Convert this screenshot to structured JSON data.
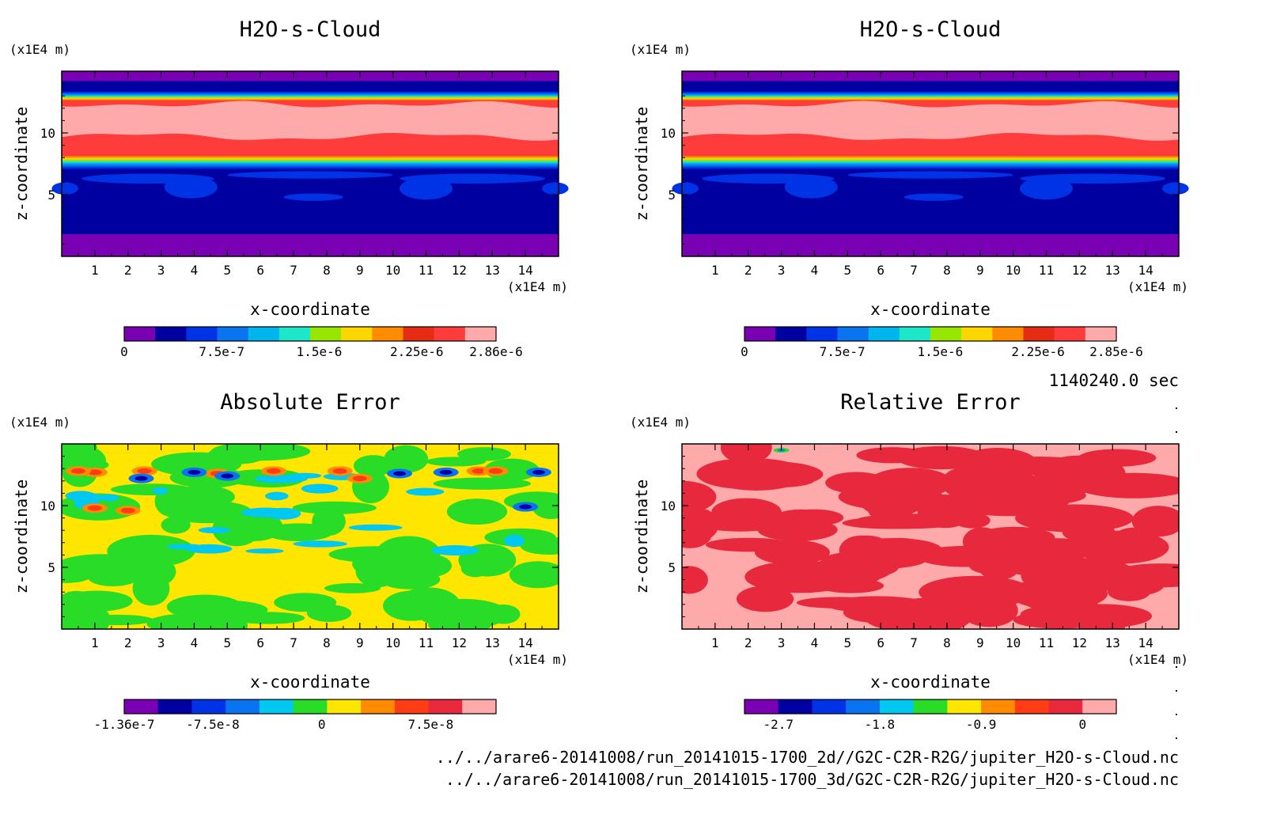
{
  "chart_data": [
    {
      "type": "heatmap",
      "title": "H2O-s-Cloud",
      "xlabel": "x-coordinate",
      "ylabel": "z-coordinate",
      "x_unit": "(x1E4 m)",
      "y_unit": "(x1E4 m)",
      "xlim": [
        0,
        15
      ],
      "ylim": [
        0,
        15
      ],
      "x_ticks": [
        "1",
        "2",
        "3",
        "4",
        "5",
        "6",
        "7",
        "8",
        "9",
        "10",
        "11",
        "12",
        "13",
        "14"
      ],
      "y_ticks": [
        "5",
        "10"
      ],
      "colorbar": {
        "range": [
          0,
          2.86e-06
        ],
        "labels": [
          "0",
          "7.5e-7",
          "1.5e-6",
          "2.25e-6",
          "2.86e-6"
        ],
        "colors": [
          "#7a00b4",
          "#0000a0",
          "#0033e6",
          "#0a73f0",
          "#00b4ee",
          "#1ee6c8",
          "#96e600",
          "#ffd700",
          "#ff8c00",
          "#e42d14",
          "#ff3c3c",
          "#ffaaaa"
        ]
      },
      "z_bands": [
        {
          "z": [
            0,
            1.8
          ],
          "level": 0
        },
        {
          "z": [
            1.8,
            7.0
          ],
          "level": 1
        },
        {
          "z": [
            7.0,
            8.2
          ],
          "level": "gradient"
        },
        {
          "z": [
            8.2,
            9.6
          ],
          "level": 10
        },
        {
          "z": [
            9.6,
            12.4
          ],
          "level": 11
        },
        {
          "z": [
            12.4,
            13.4
          ],
          "level": "gradient"
        },
        {
          "z": [
            13.4,
            14.2
          ],
          "level": 1
        },
        {
          "z": [
            14.2,
            15
          ],
          "level": 0
        }
      ]
    },
    {
      "type": "heatmap",
      "title": "H2O-s-Cloud",
      "xlabel": "x-coordinate",
      "ylabel": "z-coordinate",
      "x_unit": "(x1E4 m)",
      "y_unit": "(x1E4 m)",
      "xlim": [
        0,
        15
      ],
      "ylim": [
        0,
        15
      ],
      "x_ticks": [
        "1",
        "2",
        "3",
        "4",
        "5",
        "6",
        "7",
        "8",
        "9",
        "10",
        "11",
        "12",
        "13",
        "14"
      ],
      "y_ticks": [
        "5",
        "10"
      ],
      "colorbar": {
        "range": [
          0,
          2.85e-06
        ],
        "labels": [
          "0",
          "7.5e-7",
          "1.5e-6",
          "2.25e-6",
          "2.85e-6"
        ],
        "colors": [
          "#7a00b4",
          "#0000a0",
          "#0033e6",
          "#0a73f0",
          "#00b4ee",
          "#1ee6c8",
          "#96e600",
          "#ffd700",
          "#ff8c00",
          "#e42d14",
          "#ff3c3c",
          "#ffaaaa"
        ]
      },
      "time": "1140240.0 sec"
    },
    {
      "type": "heatmap",
      "title": "Absolute Error",
      "xlabel": "x-coordinate",
      "ylabel": "z-coordinate",
      "x_unit": "(x1E4 m)",
      "y_unit": "(x1E4 m)",
      "xlim": [
        0,
        15
      ],
      "ylim": [
        0,
        15
      ],
      "x_ticks": [
        "1",
        "2",
        "3",
        "4",
        "5",
        "6",
        "7",
        "8",
        "9",
        "10",
        "11",
        "12",
        "13",
        "14"
      ],
      "y_ticks": [
        "5",
        "10"
      ],
      "colorbar": {
        "range": [
          -1.36e-07,
          1.2e-07
        ],
        "labels": [
          "-1.36e-7",
          "-7.5e-8",
          "0",
          "7.5e-8"
        ],
        "colors": [
          "#7a00b4",
          "#0000a0",
          "#0033e6",
          "#0a73f0",
          "#00c8f0",
          "#28dc28",
          "#ffe600",
          "#ff8c00",
          "#ff3c14",
          "#e8283c",
          "#ffaaaa"
        ]
      }
    },
    {
      "type": "heatmap",
      "title": "Relative Error",
      "xlabel": "x-coordinate",
      "ylabel": "z-coordinate",
      "x_unit": "(x1E4 m)",
      "y_unit": "(x1E4 m)",
      "xlim": [
        0,
        15
      ],
      "ylim": [
        0,
        15
      ],
      "x_ticks": [
        "1",
        "2",
        "3",
        "4",
        "5",
        "6",
        "7",
        "8",
        "9",
        "10",
        "11",
        "12",
        "13",
        "14"
      ],
      "y_ticks": [
        "5",
        "10"
      ],
      "colorbar": {
        "range": [
          -3.0,
          0.3
        ],
        "labels": [
          "-2.7",
          "-1.8",
          "-0.9",
          "0"
        ],
        "colors": [
          "#7a00b4",
          "#0000a0",
          "#0033e6",
          "#0a73f0",
          "#00c8f0",
          "#28dc28",
          "#ffe600",
          "#ff8c00",
          "#ff3c14",
          "#e8283c",
          "#ffaaaa"
        ]
      }
    }
  ],
  "files": [
    "../../arare6-20141008/run_20141015-1700_2d//G2C-C2R-R2G/jupiter_H2O-s-Cloud.nc",
    "../../arare6-20141008/run_20141015-1700_3d/G2C-C2R-R2G/jupiter_H2O-s-Cloud.nc"
  ]
}
